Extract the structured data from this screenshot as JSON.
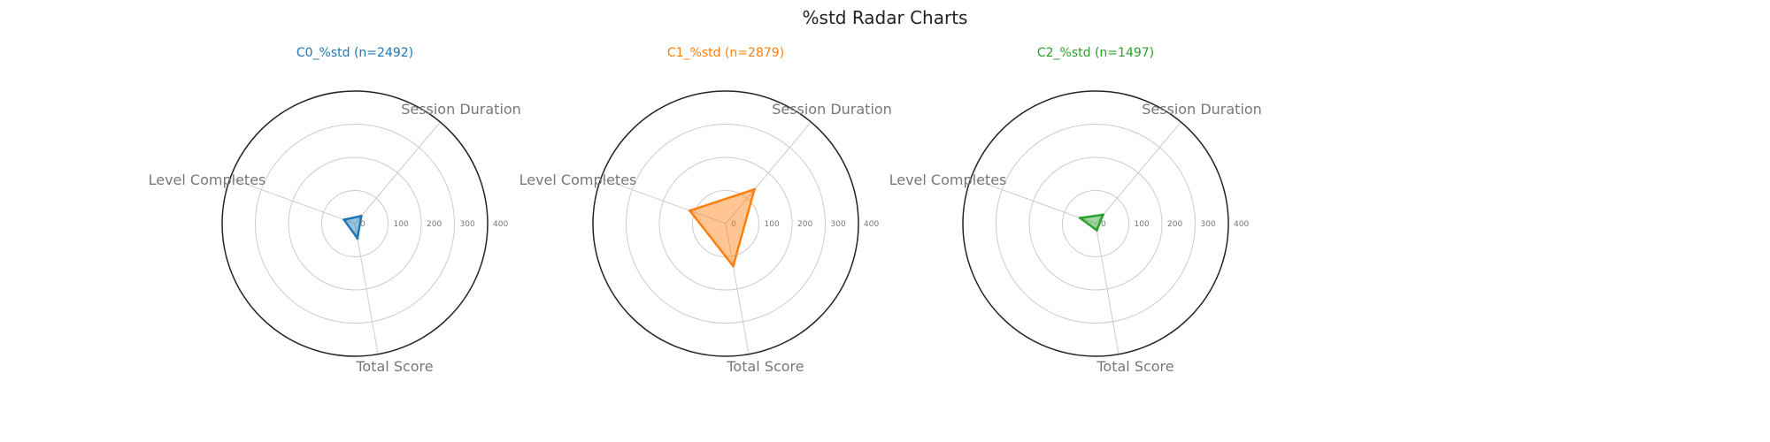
{
  "title": "%std Radar Charts",
  "chart_data": [
    {
      "type": "radar",
      "title": "C0_%std (n=2492)",
      "color": "#1f77b4",
      "axes": [
        "Session Duration",
        "Total Score",
        "Level Completes"
      ],
      "rticks": [
        0,
        100,
        200,
        300,
        400
      ],
      "rlim": [
        0,
        400
      ],
      "grid": true,
      "series": [
        {
          "values": [
            30,
            45,
            35
          ]
        }
      ]
    },
    {
      "type": "radar",
      "title": "C1_%std (n=2879)",
      "color": "#ff7f0e",
      "axes": [
        "Session Duration",
        "Total Score",
        "Level Completes"
      ],
      "rticks": [
        0,
        100,
        200,
        300,
        400
      ],
      "rlim": [
        0,
        400
      ],
      "grid": true,
      "series": [
        {
          "values": [
            135,
            130,
            115
          ]
        }
      ]
    },
    {
      "type": "radar",
      "title": "C2_%std (n=1497)",
      "color": "#2ca02c",
      "axes": [
        "Session Duration",
        "Total Score",
        "Level Completes"
      ],
      "rticks": [
        0,
        100,
        200,
        300,
        400
      ],
      "rlim": [
        0,
        400
      ],
      "grid": true,
      "series": [
        {
          "values": [
            35,
            20,
            50
          ]
        }
      ]
    }
  ]
}
